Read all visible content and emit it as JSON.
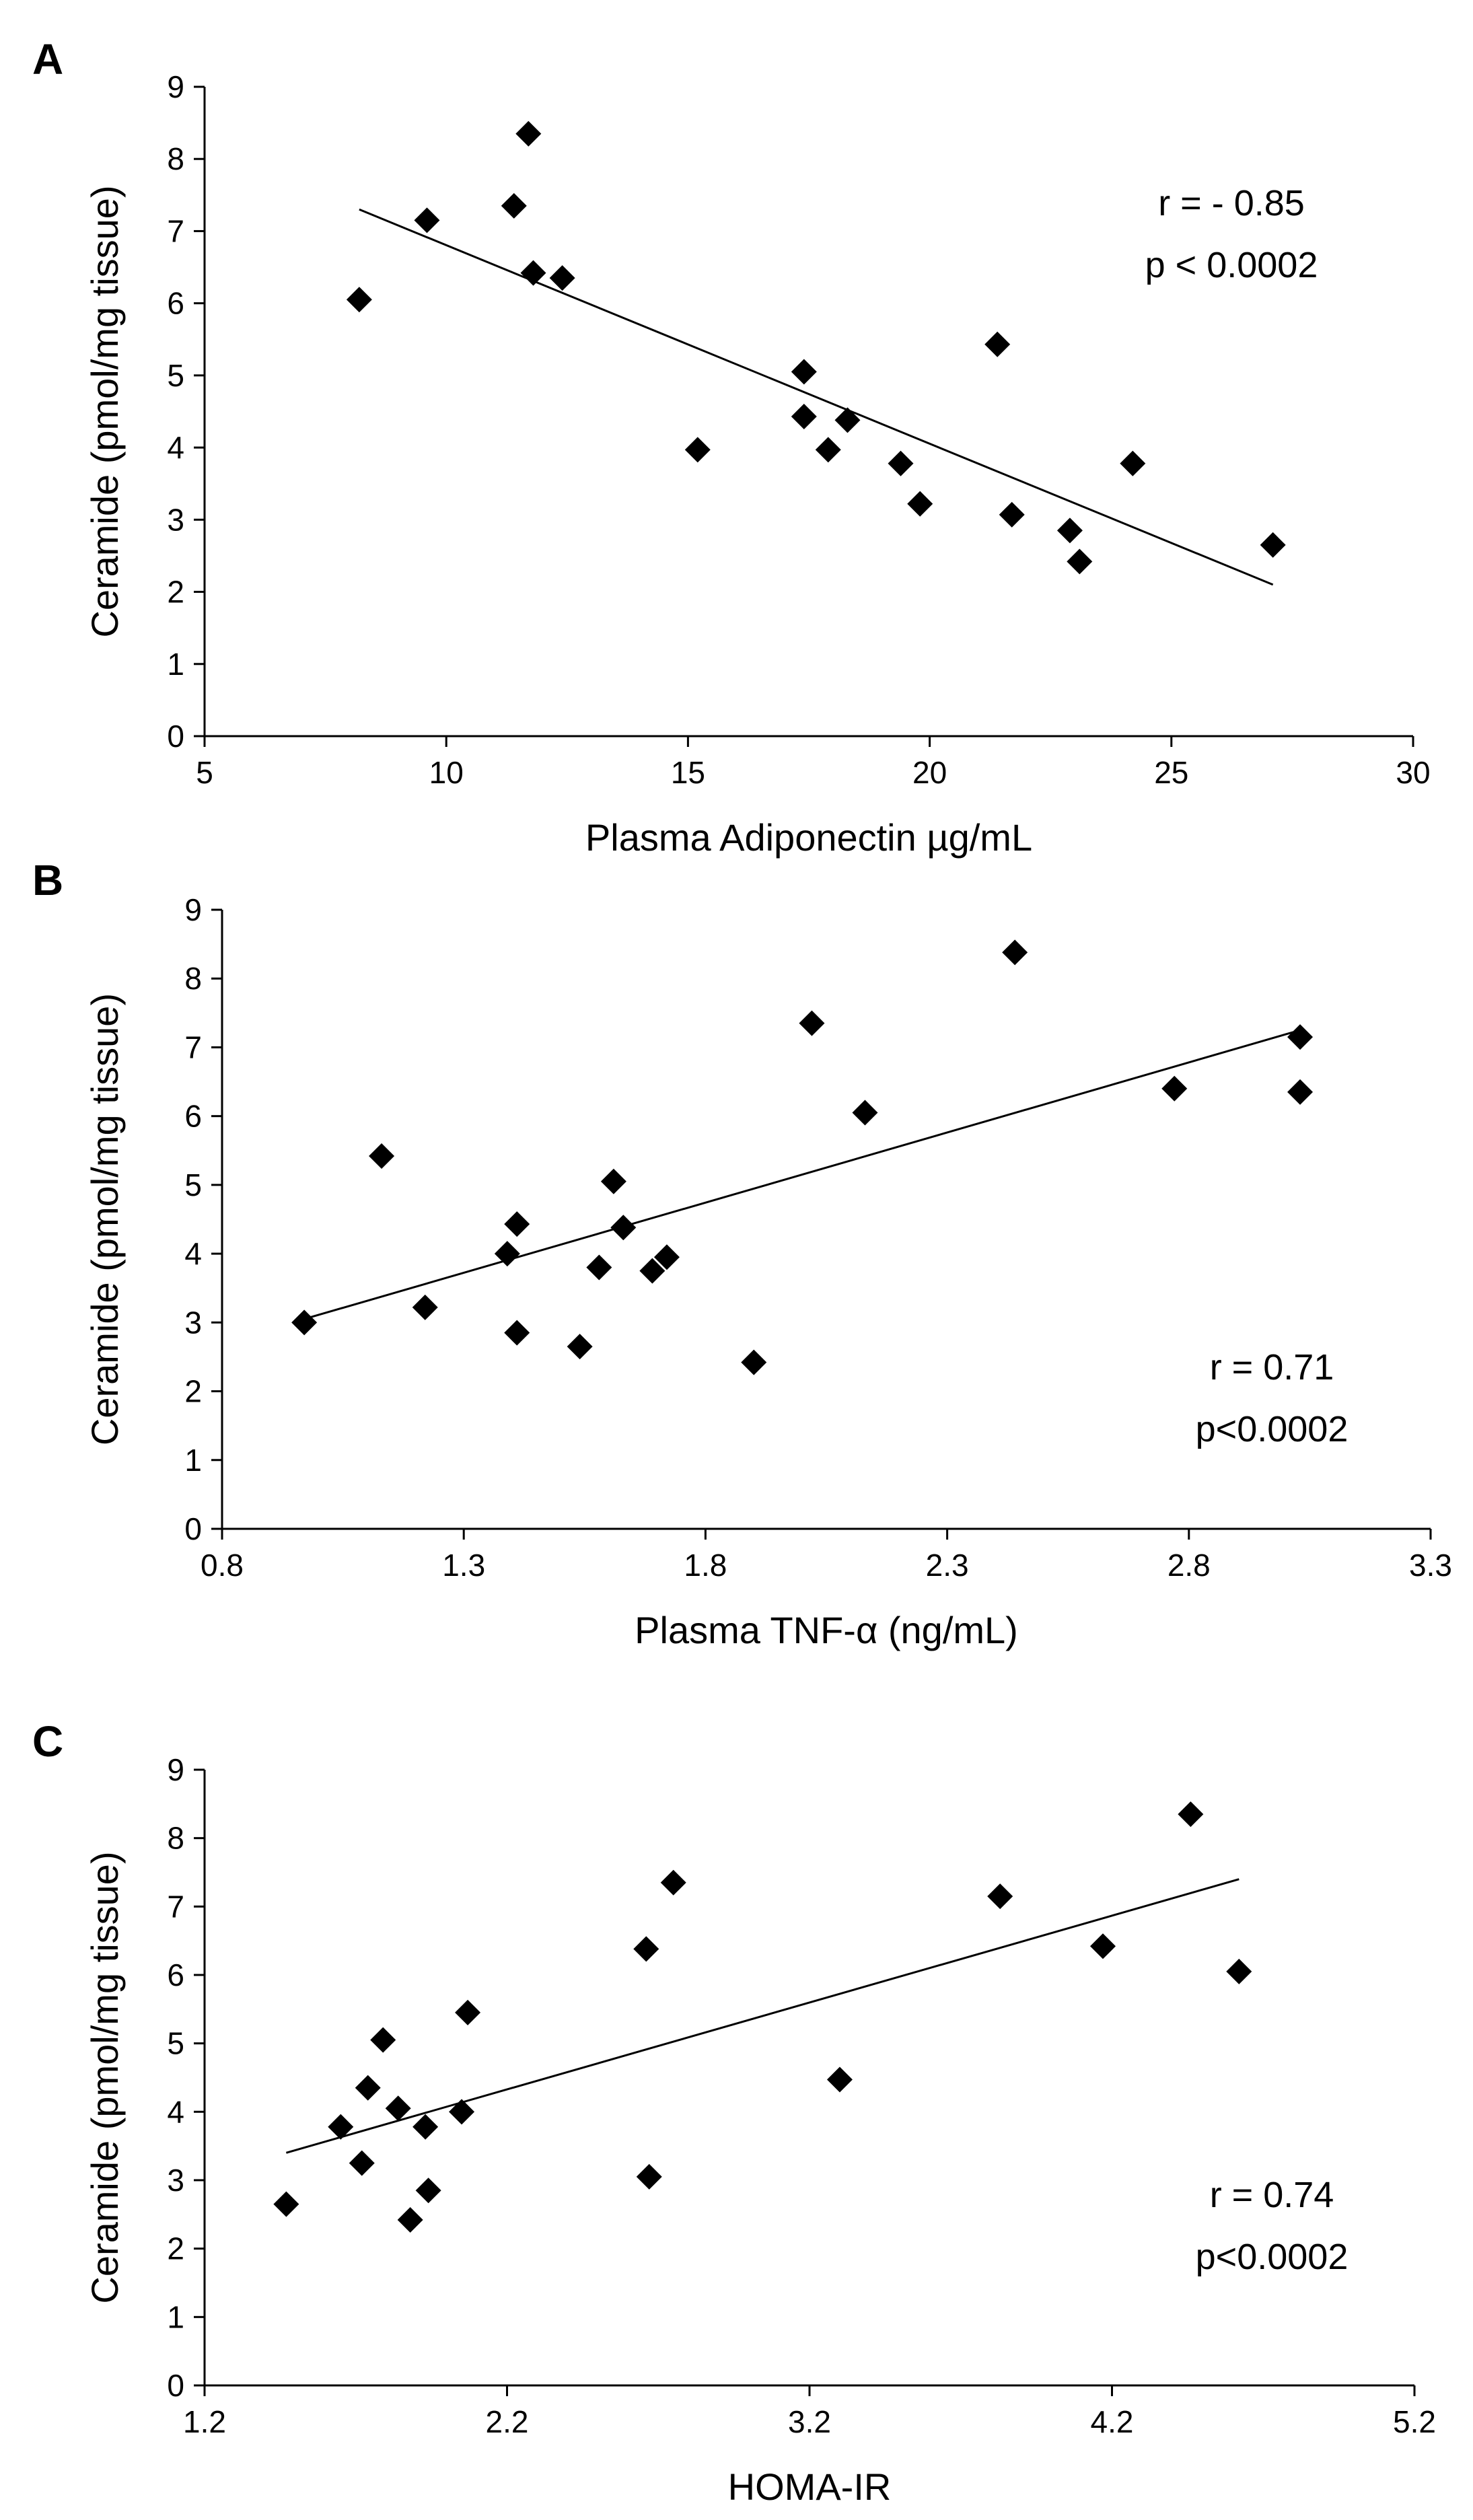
{
  "chart_data": [
    {
      "type": "scatter",
      "panel_label": "A",
      "xlabel": "Plasma Adiponectin µg/mL",
      "ylabel": "Ceramide (pmol/mg tissue)",
      "xlim": [
        5,
        30
      ],
      "ylim": [
        0,
        9
      ],
      "xticks": [
        "5",
        "10",
        "15",
        "20",
        "25",
        "30"
      ],
      "yticks": [
        "0",
        "1",
        "2",
        "3",
        "4",
        "5",
        "6",
        "7",
        "8",
        "9"
      ],
      "annotation": [
        "r = - 0.85",
        "p < 0.0002"
      ],
      "points": [
        [
          8.2,
          6.05
        ],
        [
          9.6,
          7.15
        ],
        [
          11.4,
          7.35
        ],
        [
          11.7,
          8.35
        ],
        [
          11.8,
          6.42
        ],
        [
          12.4,
          6.35
        ],
        [
          15.2,
          3.97
        ],
        [
          17.4,
          5.05
        ],
        [
          17.4,
          4.43
        ],
        [
          17.9,
          3.97
        ],
        [
          18.3,
          4.38
        ],
        [
          19.4,
          3.78
        ],
        [
          19.8,
          3.22
        ],
        [
          21.4,
          5.43
        ],
        [
          21.7,
          3.07
        ],
        [
          22.9,
          2.85
        ],
        [
          23.1,
          2.42
        ],
        [
          24.2,
          3.78
        ],
        [
          27.1,
          2.65
        ]
      ],
      "trendline": [
        [
          8.2,
          7.3
        ],
        [
          27.1,
          2.1
        ]
      ]
    },
    {
      "type": "scatter",
      "panel_label": "B",
      "xlabel": "Plasma TNF-α (ng/mL)",
      "ylabel": "Ceramide (pmol/mg tissue)",
      "xlim": [
        0.8,
        3.3
      ],
      "ylim": [
        0,
        9
      ],
      "xticks": [
        "0.8",
        "1.3",
        "1.8",
        "2.3",
        "2.8",
        "3.3"
      ],
      "yticks": [
        "0",
        "1",
        "2",
        "3",
        "4",
        "5",
        "6",
        "7",
        "8",
        "9"
      ],
      "annotation": [
        "r = 0.71",
        "p<0.0002"
      ],
      "points": [
        [
          0.97,
          3.0
        ],
        [
          1.13,
          5.42
        ],
        [
          1.22,
          3.22
        ],
        [
          1.39,
          4.0
        ],
        [
          1.41,
          4.43
        ],
        [
          1.41,
          2.85
        ],
        [
          1.54,
          2.65
        ],
        [
          1.58,
          3.8
        ],
        [
          1.61,
          5.05
        ],
        [
          1.63,
          4.38
        ],
        [
          1.69,
          3.75
        ],
        [
          1.72,
          3.95
        ],
        [
          1.9,
          2.42
        ],
        [
          2.02,
          7.35
        ],
        [
          2.13,
          6.05
        ],
        [
          2.44,
          8.38
        ],
        [
          2.77,
          6.4
        ],
        [
          3.03,
          7.15
        ],
        [
          3.03,
          6.35
        ]
      ],
      "trendline": [
        [
          0.97,
          3.05
        ],
        [
          3.03,
          7.25
        ]
      ]
    },
    {
      "type": "scatter",
      "panel_label": "C",
      "xlabel": "HOMA-IR",
      "ylabel": "Ceramide (pmol/mg tissue)",
      "xlim": [
        1.2,
        5.2
      ],
      "ylim": [
        0,
        9
      ],
      "xticks": [
        "1.2",
        "2.2",
        "3.2",
        "4.2",
        "5.2"
      ],
      "yticks": [
        "0",
        "1",
        "2",
        "3",
        "4",
        "5",
        "6",
        "7",
        "8",
        "9"
      ],
      "annotation": [
        "r = 0.74",
        "p<0.0002"
      ],
      "points": [
        [
          1.47,
          2.65
        ],
        [
          1.65,
          3.78
        ],
        [
          1.72,
          3.25
        ],
        [
          1.74,
          4.35
        ],
        [
          1.79,
          5.05
        ],
        [
          1.84,
          4.05
        ],
        [
          1.88,
          2.42
        ],
        [
          1.93,
          3.78
        ],
        [
          1.94,
          2.85
        ],
        [
          2.05,
          4.0
        ],
        [
          2.07,
          5.45
        ],
        [
          2.66,
          6.38
        ],
        [
          2.67,
          3.05
        ],
        [
          2.75,
          7.35
        ],
        [
          3.3,
          4.47
        ],
        [
          3.83,
          7.15
        ],
        [
          4.17,
          6.42
        ],
        [
          4.46,
          8.35
        ],
        [
          4.62,
          6.05
        ]
      ],
      "trendline": [
        [
          1.47,
          3.4
        ],
        [
          4.62,
          7.4
        ]
      ]
    }
  ]
}
